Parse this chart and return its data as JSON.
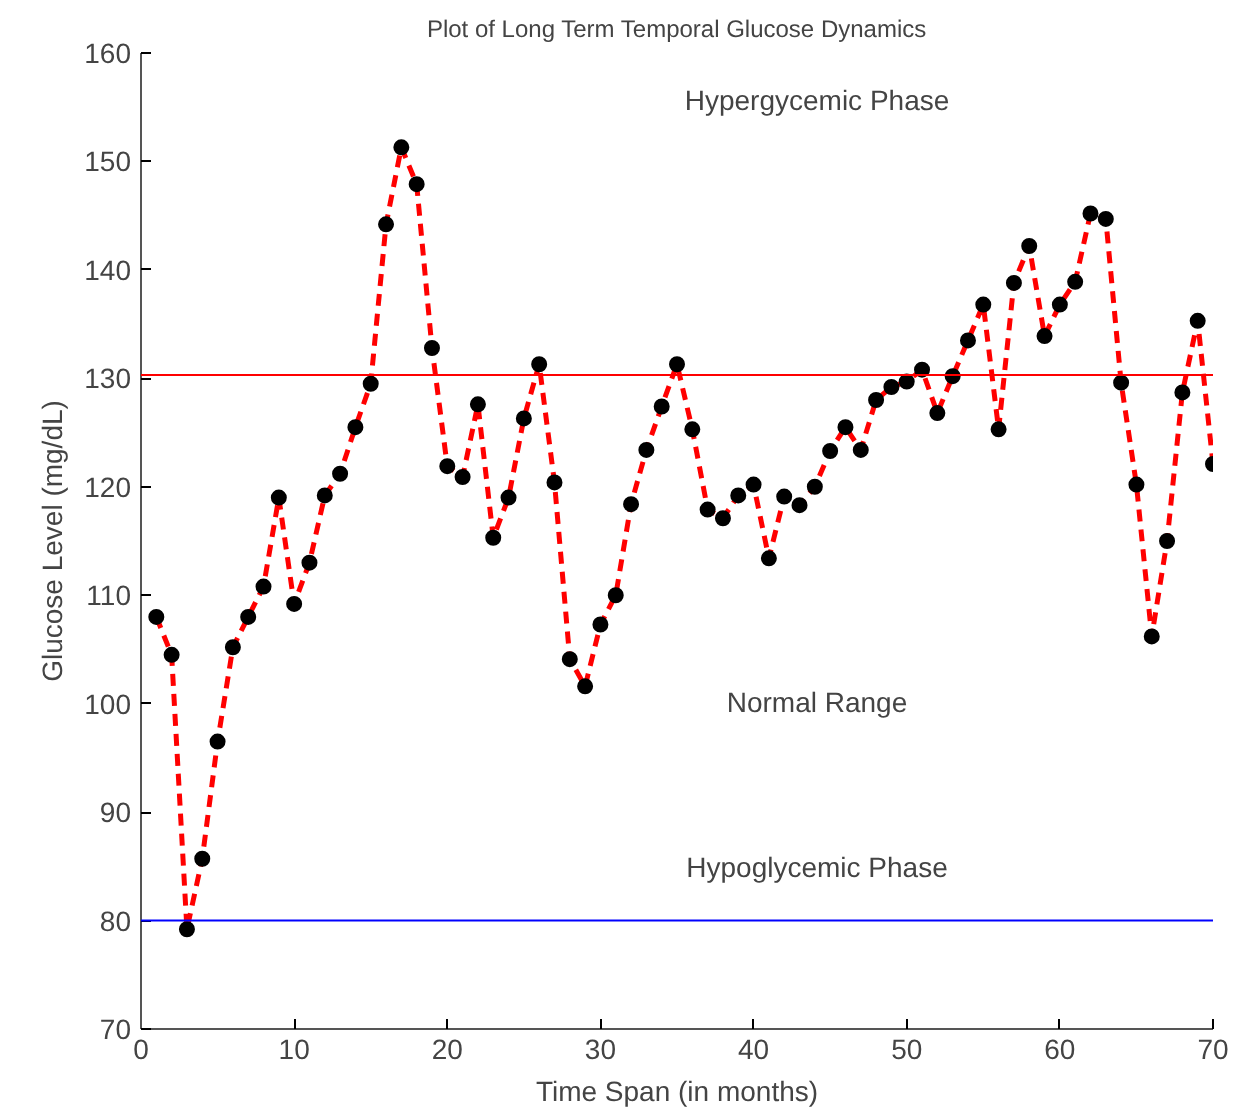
{
  "chart_data": {
    "type": "line",
    "title": "Plot of Long Term Temporal Glucose Dynamics",
    "xlabel": "Time Span (in months)",
    "ylabel": "Glucose Level (mg/dL)",
    "x": [
      1,
      2,
      3,
      4,
      5,
      6,
      7,
      8,
      9,
      10,
      11,
      12,
      13,
      14,
      15,
      16,
      17,
      18,
      19,
      20,
      21,
      22,
      23,
      24,
      25,
      26,
      27,
      28,
      29,
      30,
      31,
      32,
      33,
      34,
      35,
      36,
      37,
      38,
      39,
      40,
      41,
      42,
      43,
      44,
      45,
      46,
      47,
      48,
      49,
      50,
      51,
      52,
      53,
      54,
      55,
      56,
      57,
      58,
      59,
      60,
      61,
      62,
      63,
      64,
      65,
      66,
      67,
      68,
      69,
      70
    ],
    "series": [
      {
        "color": "#ff0000",
        "values": [
          108,
          104.5,
          79.2,
          85.7,
          96.5,
          105.2,
          108,
          110.8,
          119,
          109.2,
          113,
          119.2,
          121.2,
          125.5,
          129.5,
          144.2,
          151.3,
          147.9,
          132.8,
          121.9,
          120.9,
          127.6,
          115.3,
          119,
          126.3,
          131.3,
          120.4,
          104.1,
          101.6,
          107.3,
          110,
          118.4,
          123.4,
          127.4,
          131.3,
          125.3,
          117.9,
          117.1,
          119.2,
          120.2,
          113.4,
          119.1,
          118.3,
          120,
          123.3,
          125.5,
          123.4,
          128,
          129.2,
          129.7,
          130.8,
          126.8,
          130.2,
          133.5,
          136.8,
          125.3,
          138.8,
          142.2,
          133.9,
          136.8,
          138.9,
          145.2,
          144.7,
          129.6,
          120.2,
          106.2,
          115,
          128.7,
          135.3,
          122.1
        ]
      }
    ],
    "marker": "circle",
    "line_style": "dashed",
    "grid": false,
    "xlim": [
      0,
      70
    ],
    "xticks": [
      0,
      10,
      20,
      30,
      40,
      50,
      60,
      70
    ],
    "ylim": [
      70,
      160
    ],
    "yticks": [
      70,
      80,
      90,
      100,
      110,
      120,
      130,
      140,
      150,
      160
    ],
    "ref_lines": [
      {
        "axis": "y",
        "value": 130.3,
        "color": "#ff0000",
        "line_style": "solid"
      },
      {
        "axis": "y",
        "value": 80,
        "color": "#0000ff",
        "line_style": "solid"
      }
    ],
    "annotations": [
      "Hypergycemic Phase",
      "Normal Range",
      "Hypoglycemic Phase"
    ]
  }
}
